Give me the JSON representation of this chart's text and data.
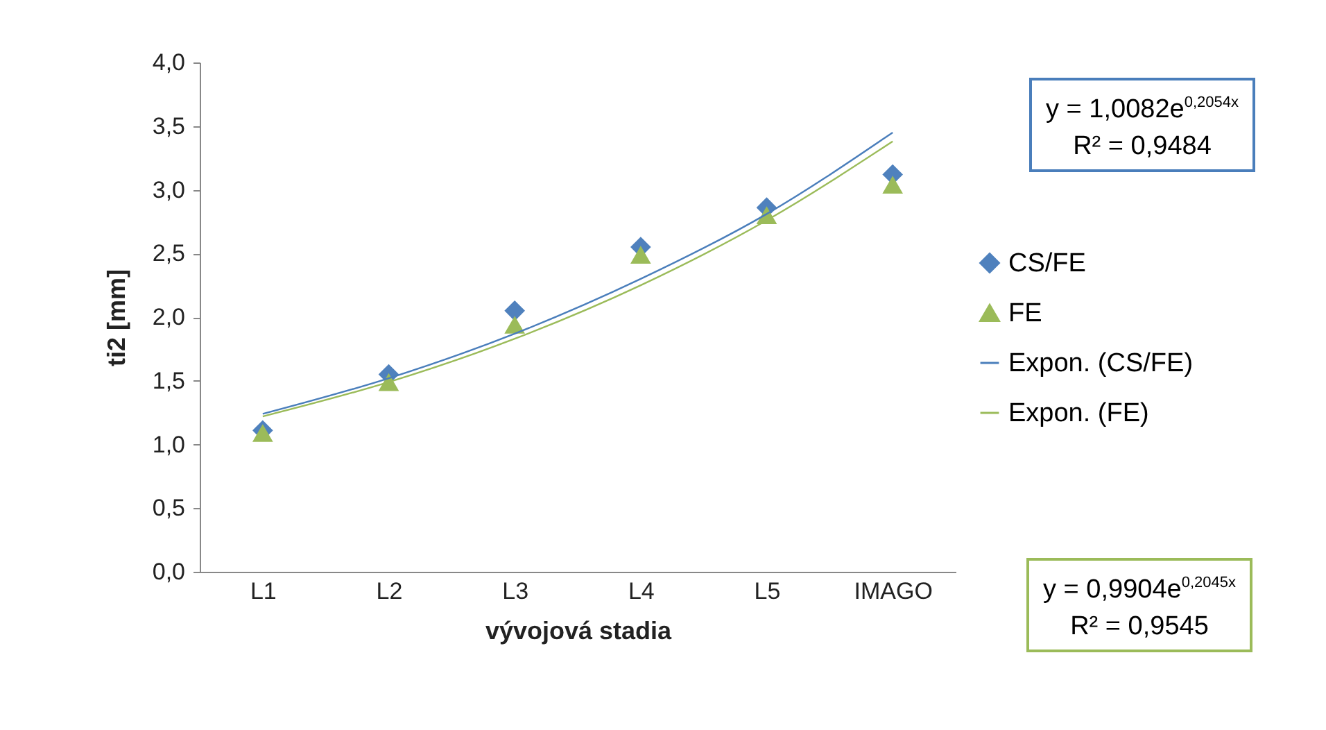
{
  "chart_data": {
    "type": "scatter",
    "xlabel": "vývojová stadia",
    "ylabel": "ti2 [mm]",
    "categories": [
      "L1",
      "L2",
      "L3",
      "L4",
      "L5",
      "IMAGO"
    ],
    "series": [
      {
        "name": "CS/FE",
        "marker": "diamond",
        "color": "#4f81bd",
        "values": [
          1.11,
          1.55,
          2.05,
          2.55,
          2.86,
          3.12
        ]
      },
      {
        "name": "FE",
        "marker": "triangle",
        "color": "#9bbb59",
        "values": [
          1.09,
          1.49,
          1.94,
          2.49,
          2.8,
          3.04
        ]
      },
      {
        "name": "Expon. (CS/FE)",
        "type": "line",
        "color": "#4a7ebb",
        "values": [
          1.24,
          1.52,
          1.87,
          2.3,
          2.81,
          3.45
        ]
      },
      {
        "name": "Expon. (FE)",
        "type": "line",
        "color": "#9bbb59",
        "values": [
          1.22,
          1.49,
          1.83,
          2.25,
          2.76,
          3.38
        ]
      }
    ],
    "ylim": [
      0,
      4
    ],
    "yticks": [
      {
        "value": 0,
        "label": "0,0"
      },
      {
        "value": 0.5,
        "label": "0,5"
      },
      {
        "value": 1,
        "label": "1,0"
      },
      {
        "value": 1.5,
        "label": "1,5"
      },
      {
        "value": 2,
        "label": "2,0"
      },
      {
        "value": 2.5,
        "label": "2,5"
      },
      {
        "value": 3,
        "label": "3,0"
      },
      {
        "value": 3.5,
        "label": "3,5"
      },
      {
        "value": 4,
        "label": "4,0"
      }
    ],
    "grid": false,
    "legend": "right",
    "annotations": [
      "y = 1,0082e$^{0,2054x}$",
      "R² = 0,9484",
      "y = 0,9904e$^{0,2045x}$",
      "R² = 0,9545"
    ]
  }
}
